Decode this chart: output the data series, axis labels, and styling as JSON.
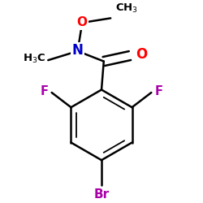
{
  "bg_color": "#ffffff",
  "atom_colors": {
    "C": "#000000",
    "N": "#0000cc",
    "O": "#ff0000",
    "F": "#aa00aa",
    "Br": "#aa00aa"
  },
  "bond_color": "#000000",
  "bond_lw": 1.8
}
